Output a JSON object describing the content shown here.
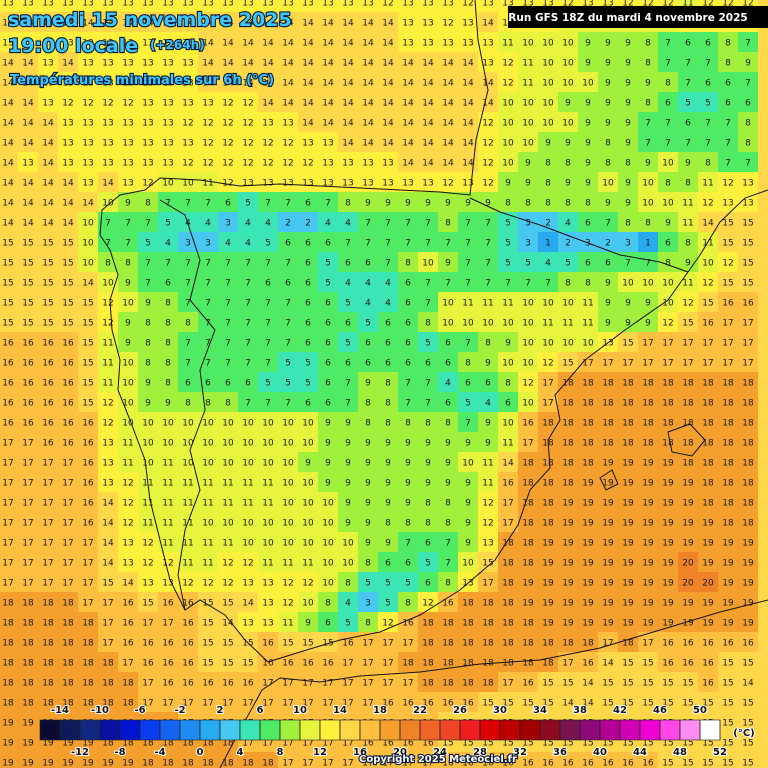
{
  "header": {
    "date": "samedi 15 novembre 2025",
    "time": "19:00 locale",
    "lead": "(+264h)",
    "subtitle": "Températures minimales sur 6h (°C)",
    "run": "Run GFS 18Z du mardi 4 novembre 2025"
  },
  "grid": {
    "rows": [
      [
        13,
        13,
        13,
        13,
        13,
        13,
        13,
        13,
        13,
        13,
        13,
        13,
        13,
        13,
        13,
        13,
        13,
        13,
        13,
        12,
        13,
        13,
        13,
        12,
        13,
        13,
        13,
        13,
        12,
        13,
        13,
        12,
        12,
        12,
        11,
        12,
        12,
        12
      ],
      [
        14,
        14,
        14,
        14,
        14,
        14,
        14,
        14,
        14,
        14,
        14,
        14,
        14,
        14,
        14,
        14,
        14,
        14,
        14,
        14,
        13,
        13,
        12,
        13,
        14,
        12,
        12,
        12,
        11,
        11,
        11,
        11,
        11,
        11,
        12,
        12,
        12,
        12
      ],
      [
        13,
        13,
        13,
        13,
        13,
        13,
        13,
        13,
        13,
        13,
        14,
        14,
        14,
        14,
        14,
        14,
        14,
        14,
        14,
        14,
        13,
        13,
        13,
        13,
        13,
        11,
        10,
        10,
        10,
        9,
        9,
        9,
        8,
        7,
        6,
        6,
        8,
        7
      ],
      [
        14,
        14,
        13,
        14,
        13,
        13,
        13,
        13,
        13,
        13,
        14,
        14,
        14,
        14,
        14,
        14,
        14,
        14,
        14,
        14,
        14,
        14,
        14,
        14,
        13,
        12,
        11,
        10,
        10,
        9,
        9,
        9,
        8,
        7,
        7,
        7,
        8,
        9
      ],
      [
        14,
        14,
        13,
        13,
        13,
        13,
        13,
        13,
        13,
        13,
        14,
        14,
        14,
        14,
        14,
        14,
        14,
        14,
        14,
        14,
        14,
        14,
        14,
        14,
        14,
        12,
        11,
        10,
        10,
        10,
        9,
        9,
        9,
        8,
        7,
        6,
        6,
        7
      ],
      [
        14,
        14,
        13,
        12,
        12,
        12,
        12,
        13,
        13,
        13,
        13,
        12,
        12,
        14,
        14,
        14,
        14,
        14,
        14,
        14,
        14,
        14,
        14,
        14,
        14,
        10,
        10,
        10,
        9,
        9,
        9,
        9,
        8,
        6,
        5,
        5,
        6,
        6
      ],
      [
        14,
        14,
        14,
        13,
        13,
        13,
        13,
        13,
        13,
        12,
        12,
        12,
        12,
        13,
        13,
        14,
        14,
        14,
        14,
        14,
        14,
        14,
        14,
        14,
        12,
        10,
        10,
        10,
        10,
        9,
        9,
        9,
        7,
        7,
        6,
        7,
        7,
        8
      ],
      [
        14,
        14,
        14,
        13,
        13,
        13,
        13,
        13,
        13,
        13,
        12,
        12,
        12,
        12,
        12,
        13,
        13,
        14,
        14,
        14,
        14,
        14,
        14,
        14,
        12,
        10,
        10,
        9,
        9,
        9,
        8,
        9,
        7,
        7,
        7,
        7,
        7,
        8
      ],
      [
        14,
        13,
        14,
        13,
        13,
        13,
        13,
        13,
        13,
        12,
        12,
        12,
        12,
        12,
        12,
        12,
        13,
        13,
        13,
        13,
        14,
        14,
        14,
        14,
        12,
        10,
        9,
        8,
        8,
        9,
        8,
        8,
        9,
        10,
        9,
        8,
        7,
        7
      ],
      [
        14,
        14,
        14,
        14,
        13,
        14,
        13,
        12,
        10,
        10,
        11,
        12,
        13,
        13,
        13,
        13,
        13,
        13,
        13,
        13,
        13,
        13,
        12,
        13,
        12,
        9,
        9,
        8,
        9,
        9,
        10,
        9,
        10,
        8,
        8,
        11,
        12,
        13
      ],
      [
        14,
        14,
        14,
        14,
        14,
        10,
        9,
        8,
        7,
        7,
        7,
        6,
        5,
        7,
        7,
        6,
        7,
        8,
        9,
        9,
        9,
        9,
        9,
        9,
        9,
        8,
        8,
        8,
        8,
        8,
        9,
        9,
        10,
        10,
        11,
        12,
        13,
        13
      ],
      [
        14,
        14,
        14,
        14,
        10,
        7,
        7,
        7,
        5,
        4,
        4,
        3,
        4,
        4,
        2,
        2,
        4,
        4,
        7,
        7,
        7,
        7,
        8,
        7,
        7,
        5,
        3,
        2,
        4,
        6,
        7,
        8,
        8,
        9,
        11,
        14,
        15,
        15
      ],
      [
        15,
        15,
        15,
        15,
        10,
        7,
        7,
        5,
        4,
        3,
        3,
        4,
        4,
        5,
        6,
        6,
        6,
        7,
        7,
        7,
        7,
        7,
        7,
        7,
        7,
        5,
        3,
        1,
        2,
        3,
        2,
        3,
        1,
        6,
        8,
        11,
        15,
        15
      ],
      [
        15,
        15,
        15,
        15,
        10,
        8,
        8,
        7,
        7,
        7,
        7,
        7,
        7,
        7,
        7,
        6,
        5,
        6,
        6,
        7,
        8,
        10,
        9,
        7,
        7,
        5,
        5,
        4,
        5,
        6,
        6,
        7,
        7,
        8,
        9,
        10,
        12,
        15
      ],
      [
        15,
        15,
        15,
        15,
        14,
        10,
        9,
        7,
        6,
        7,
        7,
        7,
        7,
        6,
        6,
        6,
        5,
        4,
        4,
        4,
        6,
        7,
        7,
        7,
        7,
        7,
        7,
        7,
        8,
        8,
        9,
        10,
        10,
        10,
        11,
        12,
        15,
        15
      ],
      [
        15,
        15,
        15,
        15,
        15,
        12,
        10,
        9,
        8,
        7,
        7,
        7,
        7,
        7,
        7,
        6,
        6,
        5,
        4,
        4,
        6,
        7,
        10,
        11,
        11,
        11,
        10,
        10,
        10,
        11,
        9,
        9,
        9,
        10,
        12,
        15,
        16,
        16
      ],
      [
        15,
        15,
        15,
        15,
        15,
        12,
        9,
        8,
        8,
        8,
        7,
        7,
        7,
        7,
        7,
        6,
        6,
        6,
        5,
        6,
        6,
        8,
        10,
        10,
        10,
        10,
        10,
        11,
        11,
        11,
        9,
        9,
        9,
        12,
        15,
        16,
        17,
        17
      ],
      [
        16,
        16,
        16,
        16,
        15,
        11,
        9,
        8,
        8,
        7,
        7,
        7,
        7,
        7,
        7,
        6,
        6,
        5,
        6,
        6,
        6,
        5,
        6,
        7,
        8,
        9,
        10,
        10,
        10,
        10,
        13,
        15,
        17,
        17,
        17,
        17,
        17,
        17
      ],
      [
        16,
        16,
        16,
        16,
        15,
        11,
        10,
        8,
        8,
        7,
        7,
        7,
        7,
        7,
        5,
        5,
        6,
        6,
        6,
        6,
        6,
        6,
        6,
        8,
        9,
        10,
        10,
        12,
        15,
        17,
        17,
        17,
        17,
        17,
        17,
        17,
        17,
        17
      ],
      [
        16,
        16,
        16,
        16,
        15,
        11,
        10,
        9,
        8,
        6,
        6,
        6,
        6,
        5,
        5,
        5,
        6,
        7,
        9,
        8,
        7,
        7,
        4,
        6,
        6,
        8,
        12,
        17,
        18,
        18,
        18,
        18,
        18,
        18,
        18,
        18,
        18,
        18
      ],
      [
        16,
        16,
        16,
        16,
        15,
        12,
        10,
        9,
        9,
        8,
        8,
        8,
        7,
        7,
        7,
        6,
        6,
        7,
        8,
        8,
        7,
        7,
        6,
        5,
        4,
        6,
        10,
        17,
        18,
        18,
        18,
        18,
        18,
        18,
        18,
        18,
        18,
        18
      ],
      [
        16,
        16,
        16,
        16,
        16,
        12,
        10,
        10,
        10,
        10,
        10,
        10,
        10,
        10,
        10,
        10,
        9,
        9,
        8,
        8,
        8,
        8,
        8,
        7,
        9,
        10,
        16,
        18,
        18,
        18,
        18,
        18,
        18,
        18,
        18,
        18,
        18,
        18
      ],
      [
        17,
        17,
        16,
        16,
        16,
        13,
        11,
        10,
        10,
        10,
        10,
        10,
        10,
        10,
        10,
        10,
        9,
        9,
        9,
        9,
        9,
        9,
        9,
        9,
        9,
        11,
        17,
        18,
        18,
        18,
        18,
        18,
        18,
        18,
        18,
        18,
        18,
        18
      ],
      [
        17,
        17,
        17,
        17,
        16,
        13,
        11,
        10,
        11,
        10,
        10,
        10,
        10,
        10,
        10,
        9,
        9,
        9,
        9,
        9,
        9,
        9,
        9,
        10,
        11,
        14,
        18,
        18,
        18,
        18,
        19,
        19,
        19,
        19,
        18,
        18,
        18,
        18
      ],
      [
        17,
        17,
        17,
        17,
        16,
        13,
        12,
        11,
        11,
        11,
        11,
        11,
        11,
        11,
        10,
        10,
        9,
        9,
        9,
        9,
        9,
        9,
        9,
        9,
        11,
        16,
        18,
        18,
        18,
        19,
        19,
        19,
        19,
        19,
        19,
        18,
        18,
        18
      ],
      [
        17,
        17,
        17,
        17,
        16,
        14,
        12,
        11,
        11,
        11,
        11,
        11,
        11,
        11,
        10,
        10,
        10,
        9,
        9,
        9,
        9,
        8,
        8,
        9,
        12,
        17,
        18,
        18,
        19,
        19,
        19,
        19,
        19,
        19,
        19,
        18,
        18,
        18
      ],
      [
        17,
        17,
        17,
        17,
        16,
        14,
        12,
        11,
        11,
        11,
        10,
        10,
        10,
        10,
        10,
        10,
        10,
        9,
        9,
        8,
        8,
        8,
        8,
        9,
        12,
        17,
        18,
        18,
        19,
        19,
        19,
        19,
        19,
        19,
        19,
        19,
        18,
        18
      ],
      [
        17,
        17,
        17,
        17,
        17,
        14,
        13,
        12,
        11,
        11,
        11,
        11,
        10,
        10,
        10,
        10,
        10,
        10,
        9,
        9,
        7,
        6,
        7,
        9,
        13,
        18,
        18,
        19,
        19,
        19,
        19,
        19,
        19,
        19,
        19,
        19,
        19,
        19
      ],
      [
        17,
        17,
        17,
        17,
        17,
        14,
        13,
        12,
        12,
        11,
        11,
        12,
        12,
        11,
        11,
        11,
        10,
        10,
        8,
        6,
        6,
        5,
        7,
        10,
        15,
        18,
        18,
        19,
        19,
        19,
        19,
        19,
        19,
        19,
        20,
        19,
        19,
        19
      ],
      [
        17,
        17,
        17,
        17,
        17,
        15,
        14,
        13,
        13,
        12,
        12,
        12,
        13,
        13,
        12,
        12,
        10,
        8,
        5,
        5,
        5,
        6,
        8,
        13,
        17,
        18,
        19,
        19,
        19,
        19,
        19,
        19,
        19,
        19,
        20,
        20,
        19,
        19
      ],
      [
        18,
        18,
        18,
        18,
        17,
        17,
        16,
        15,
        16,
        16,
        15,
        15,
        14,
        13,
        12,
        10,
        8,
        4,
        3,
        5,
        8,
        12,
        16,
        18,
        18,
        18,
        19,
        19,
        19,
        19,
        19,
        19,
        19,
        19,
        19,
        19,
        19,
        19
      ],
      [
        18,
        18,
        18,
        18,
        18,
        17,
        16,
        17,
        17,
        16,
        15,
        14,
        13,
        13,
        11,
        9,
        6,
        5,
        8,
        12,
        16,
        18,
        18,
        18,
        18,
        18,
        18,
        19,
        19,
        19,
        19,
        19,
        19,
        19,
        19,
        19,
        19,
        19
      ],
      [
        18,
        18,
        18,
        18,
        18,
        17,
        16,
        16,
        16,
        16,
        15,
        15,
        15,
        16,
        15,
        15,
        15,
        16,
        17,
        17,
        17,
        18,
        18,
        18,
        18,
        18,
        18,
        18,
        18,
        18,
        17,
        18,
        17,
        16,
        16,
        16,
        16,
        16
      ],
      [
        18,
        18,
        18,
        18,
        18,
        18,
        17,
        16,
        16,
        16,
        15,
        15,
        15,
        16,
        16,
        16,
        16,
        17,
        17,
        17,
        18,
        18,
        18,
        18,
        18,
        18,
        18,
        18,
        17,
        16,
        14,
        15,
        15,
        16,
        16,
        16,
        15,
        15
      ],
      [
        18,
        18,
        18,
        18,
        18,
        18,
        18,
        17,
        16,
        16,
        16,
        16,
        16,
        17,
        17,
        17,
        17,
        17,
        17,
        17,
        17,
        18,
        18,
        18,
        18,
        17,
        16,
        15,
        15,
        14,
        15,
        15,
        15,
        15,
        15,
        16,
        15,
        14
      ],
      [
        18,
        18,
        18,
        18,
        18,
        18,
        18,
        17,
        17,
        17,
        17,
        17,
        17,
        17,
        17,
        17,
        17,
        17,
        17,
        16,
        16,
        16,
        16,
        16,
        15,
        15,
        15,
        15,
        14,
        14,
        15,
        15,
        15,
        15,
        15,
        15,
        15,
        15
      ],
      [
        19,
        19,
        18,
        18,
        18,
        18,
        18,
        18,
        18,
        17,
        17,
        17,
        17,
        17,
        17,
        17,
        17,
        16,
        16,
        16,
        16,
        16,
        15,
        15,
        15,
        15,
        15,
        15,
        15,
        15,
        15,
        15,
        15,
        15,
        15,
        15,
        15,
        15
      ],
      [
        19,
        19,
        19,
        19,
        19,
        18,
        18,
        18,
        18,
        18,
        18,
        18,
        17,
        17,
        17,
        17,
        17,
        17,
        16,
        16,
        16,
        16,
        15,
        15,
        15,
        15,
        15,
        15,
        15,
        15,
        15,
        15,
        15,
        15,
        15,
        15,
        15,
        15
      ],
      [
        19,
        19,
        19,
        19,
        19,
        19,
        19,
        18,
        18,
        18,
        18,
        18,
        18,
        18,
        17,
        17,
        17,
        17,
        17,
        17,
        17,
        17,
        16,
        16,
        16,
        16,
        16,
        16,
        16,
        16,
        16,
        16,
        16,
        15,
        15,
        15,
        15,
        15
      ]
    ]
  },
  "legend": {
    "unit": "(°C)",
    "ticks": [
      -14,
      -12,
      -10,
      -8,
      -6,
      -4,
      -2,
      0,
      2,
      4,
      6,
      8,
      10,
      12,
      14,
      16,
      18,
      20,
      22,
      24,
      26,
      28,
      30,
      32,
      34,
      36,
      38,
      40,
      42,
      44,
      46,
      48,
      50,
      52
    ],
    "colors": [
      "#0a0a32",
      "#0c1a5a",
      "#10287e",
      "#0a10a0",
      "#0014d2",
      "#0a3cf0",
      "#1464f0",
      "#1e8cf0",
      "#28aaf0",
      "#46c8f0",
      "#3ce6b4",
      "#50eb64",
      "#a0f03c",
      "#e6f53c",
      "#fff03c",
      "#ffd84a",
      "#ffc040",
      "#f5a02d",
      "#f08228",
      "#f06428",
      "#f04628",
      "#f01e1e",
      "#dc0000",
      "#be0000",
      "#a00000",
      "#8c0a1e",
      "#781450",
      "#8c0a78",
      "#b40096",
      "#d200b4",
      "#f000d2",
      "#ff46e6",
      "#ff8cf0",
      "#ffffff"
    ]
  },
  "copyright": "Copyright 2025 Meteociel.fr"
}
